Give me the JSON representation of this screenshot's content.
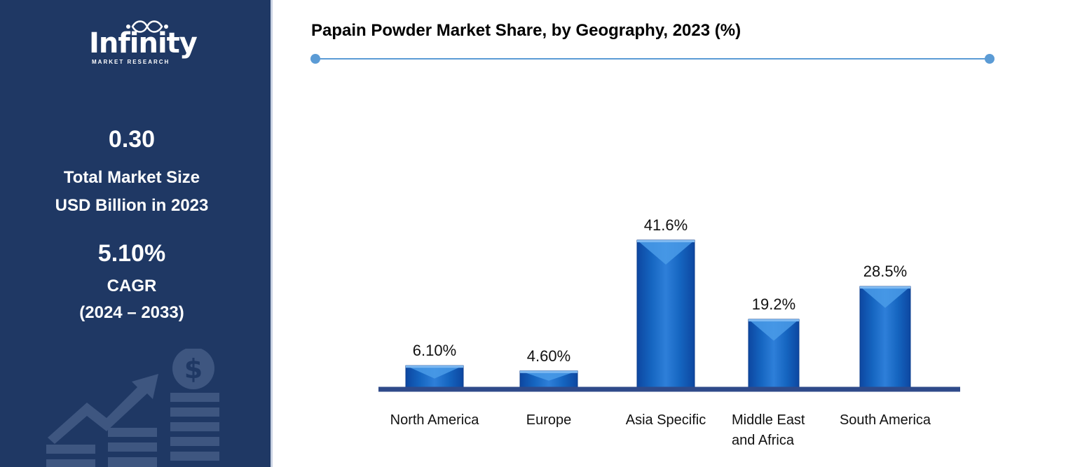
{
  "brand": {
    "name": "Infinity",
    "tagline": "MARKET RESEARCH"
  },
  "summary": {
    "market_size_value": "0.30",
    "market_size_label_1": "Total Market Size",
    "market_size_label_2": "USD Billion in 2023",
    "cagr_value": "5.10%",
    "cagr_label_1": "CAGR",
    "cagr_label_2": "(2024 – 2033)"
  },
  "icons": [
    "dollar-coin-icon",
    "growth-arrow-icon",
    "bar-stack-icon"
  ],
  "colors": {
    "sidebar": "#1f3864",
    "bar": "#1565c0",
    "bar_light": "#3d8fe0",
    "baseline": "#2f4a8a",
    "rule": "#5b9bd5"
  },
  "chart_data": {
    "type": "bar",
    "title": "Papain Powder Market Share, by Geography, 2023 (%)",
    "categories": [
      "North America",
      "Europe",
      "Asia Specific",
      "Middle East and Africa",
      "South America"
    ],
    "category_lines": [
      [
        "North America"
      ],
      [
        "Europe"
      ],
      [
        "Asia Specific"
      ],
      [
        "Middle East",
        "and Africa"
      ],
      [
        "South America"
      ]
    ],
    "values": [
      6.1,
      4.6,
      41.6,
      19.2,
      28.5
    ],
    "data_labels": [
      "6.10%",
      "4.60%",
      "41.6%",
      "19.2%",
      "28.5%"
    ],
    "xlabel": "",
    "ylabel": "",
    "ylim": [
      0,
      41.6
    ],
    "grid": false,
    "legend": "none"
  }
}
